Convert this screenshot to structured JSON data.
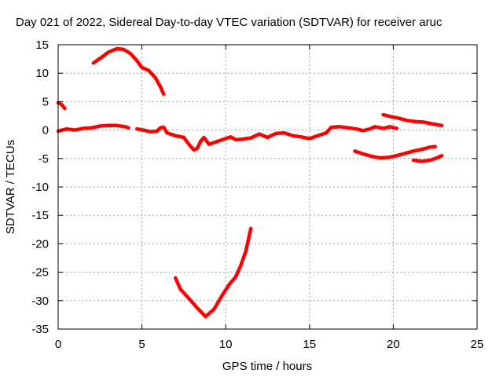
{
  "chart_data": {
    "type": "line",
    "title": "Day 021 of 2022, Sidereal Day-to-day VTEC variation (SDTVAR) for receiver aruc",
    "xlabel": "GPS time / hours",
    "ylabel": "SDTVAR / TECUs",
    "xlim": [
      0,
      25
    ],
    "ylim": [
      -35,
      15
    ],
    "xticks": [
      0,
      5,
      10,
      15,
      20,
      25
    ],
    "yticks": [
      15,
      10,
      5,
      0,
      -5,
      -10,
      -15,
      -20,
      -25,
      -30,
      -35
    ],
    "grid": true,
    "series_color": "#ff0000",
    "series": [
      {
        "name": "arc-1",
        "points": [
          [
            0.0,
            4.8
          ],
          [
            0.2,
            4.5
          ],
          [
            0.4,
            3.8
          ]
        ]
      },
      {
        "name": "arc-2",
        "points": [
          [
            2.1,
            11.8
          ],
          [
            2.5,
            12.6
          ],
          [
            3.0,
            13.7
          ],
          [
            3.5,
            14.3
          ],
          [
            3.9,
            14.2
          ],
          [
            4.3,
            13.5
          ],
          [
            4.7,
            12.2
          ],
          [
            5.0,
            11.0
          ],
          [
            5.4,
            10.5
          ],
          [
            5.8,
            9.2
          ],
          [
            6.1,
            7.6
          ],
          [
            6.3,
            6.3
          ]
        ]
      },
      {
        "name": "arc-3",
        "points": [
          [
            0.0,
            -0.2
          ],
          [
            0.5,
            0.2
          ],
          [
            1.0,
            0.0
          ],
          [
            1.5,
            0.3
          ],
          [
            2.0,
            0.4
          ],
          [
            2.5,
            0.7
          ],
          [
            3.0,
            0.8
          ],
          [
            3.5,
            0.8
          ],
          [
            4.0,
            0.6
          ],
          [
            4.2,
            0.4
          ]
        ]
      },
      {
        "name": "arc-4",
        "points": [
          [
            4.7,
            0.2
          ],
          [
            5.1,
            0.0
          ],
          [
            5.5,
            -0.3
          ],
          [
            5.9,
            -0.2
          ],
          [
            6.1,
            0.4
          ],
          [
            6.3,
            0.5
          ],
          [
            6.5,
            -0.5
          ],
          [
            7.0,
            -1.0
          ],
          [
            7.5,
            -1.3
          ],
          [
            7.8,
            -2.5
          ],
          [
            8.1,
            -3.5
          ],
          [
            8.3,
            -3.2
          ],
          [
            8.5,
            -2.0
          ],
          [
            8.7,
            -1.3
          ],
          [
            9.0,
            -2.5
          ],
          [
            9.2,
            -2.3
          ]
        ]
      },
      {
        "name": "arc-5",
        "points": [
          [
            9.2,
            -2.3
          ],
          [
            9.7,
            -1.8
          ],
          [
            10.0,
            -1.5
          ],
          [
            10.3,
            -1.2
          ],
          [
            10.6,
            -1.7
          ],
          [
            11.0,
            -1.6
          ],
          [
            11.5,
            -1.4
          ],
          [
            12.0,
            -0.7
          ],
          [
            12.5,
            -1.3
          ],
          [
            13.0,
            -0.6
          ],
          [
            13.5,
            -0.5
          ],
          [
            14.0,
            -1.0
          ],
          [
            14.5,
            -1.2
          ],
          [
            15.0,
            -1.5
          ],
          [
            15.5,
            -1.0
          ],
          [
            16.0,
            -0.5
          ],
          [
            16.3,
            0.5
          ],
          [
            16.8,
            0.6
          ],
          [
            17.3,
            0.4
          ],
          [
            17.8,
            0.2
          ],
          [
            18.2,
            -0.1
          ],
          [
            18.6,
            0.2
          ],
          [
            18.9,
            0.6
          ],
          [
            19.4,
            0.3
          ],
          [
            19.8,
            0.6
          ],
          [
            20.2,
            0.3
          ]
        ]
      },
      {
        "name": "arc-6",
        "points": [
          [
            19.4,
            2.7
          ],
          [
            19.8,
            2.4
          ],
          [
            20.3,
            2.1
          ],
          [
            20.8,
            1.7
          ],
          [
            21.3,
            1.5
          ],
          [
            21.8,
            1.4
          ],
          [
            22.3,
            1.1
          ],
          [
            22.9,
            0.8
          ]
        ]
      },
      {
        "name": "arc-7",
        "points": [
          [
            17.7,
            -3.7
          ],
          [
            18.2,
            -4.2
          ],
          [
            18.7,
            -4.6
          ],
          [
            19.2,
            -4.9
          ],
          [
            19.7,
            -4.8
          ],
          [
            20.2,
            -4.5
          ],
          [
            20.7,
            -4.1
          ],
          [
            21.2,
            -3.7
          ],
          [
            21.7,
            -3.4
          ],
          [
            22.2,
            -3.0
          ],
          [
            22.5,
            -2.9
          ]
        ]
      },
      {
        "name": "arc-8",
        "points": [
          [
            21.2,
            -5.3
          ],
          [
            21.7,
            -5.5
          ],
          [
            22.2,
            -5.3
          ],
          [
            22.6,
            -4.9
          ],
          [
            22.9,
            -4.5
          ]
        ]
      },
      {
        "name": "arc-9",
        "points": [
          [
            7.0,
            -26.0
          ],
          [
            7.3,
            -28.0
          ],
          [
            7.8,
            -29.6
          ],
          [
            8.3,
            -31.3
          ],
          [
            8.8,
            -32.8
          ],
          [
            9.3,
            -31.5
          ],
          [
            9.8,
            -29.0
          ],
          [
            10.2,
            -27.2
          ],
          [
            10.6,
            -25.8
          ],
          [
            10.9,
            -23.8
          ],
          [
            11.2,
            -21.3
          ],
          [
            11.5,
            -17.3
          ]
        ]
      }
    ]
  }
}
